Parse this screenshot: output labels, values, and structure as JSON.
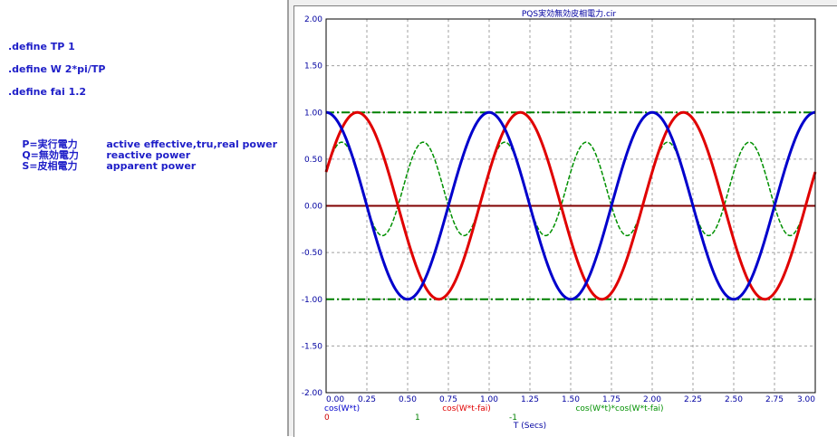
{
  "netlist": {
    "define_lines": [
      ".define TP 1",
      ".define W 2*pi/TP",
      ".define fai 1.2"
    ],
    "power_terms": [
      {
        "key": "P=実行電力",
        "desc": "active effective,tru,real power"
      },
      {
        "key": "Q=無効電力",
        "desc": "reactive power"
      },
      {
        "key": "S=皮相電力",
        "desc": "apparent power"
      }
    ]
  },
  "chart_data": {
    "type": "line",
    "title": "PQS実効無効皮相電力.cir",
    "xlabel": "T (Secs)",
    "ylabel": "",
    "xlim": [
      0,
      3
    ],
    "ylim": [
      -2,
      2
    ],
    "x_ticks": [
      "0.00",
      "0.25",
      "0.50",
      "0.75",
      "1.00",
      "1.25",
      "1.50",
      "1.75",
      "2.00",
      "2.25",
      "2.50",
      "2.75",
      "3.00"
    ],
    "y_ticks": [
      "2.00",
      "1.50",
      "1.00",
      "0.50",
      "0.00",
      "-0.50",
      "-1.00",
      "-1.50",
      "-2.00"
    ],
    "grid": true,
    "parameters": {
      "TP": 1,
      "fai": 1.2
    },
    "series": [
      {
        "name": "cos(W*t)",
        "color": "#0000cc",
        "style": "solid",
        "function": "cos(W*t)"
      },
      {
        "name": "cos(W*t-fai)",
        "color": "#e00000",
        "style": "solid",
        "function": "cos(W*t-fai)"
      },
      {
        "name": "cos(W*t)*cos(W*t-fai)",
        "color": "#009000",
        "style": "dashed",
        "function": "cos(W*t)*cos(W*t-fai)"
      }
    ],
    "reference_lines": [
      {
        "y": 1,
        "color": "#008000",
        "style": "dashdot"
      },
      {
        "y": -1,
        "color": "#008000",
        "style": "dashdot"
      },
      {
        "y": 0,
        "color": "#800000",
        "style": "solid"
      }
    ],
    "legend_values": [
      {
        "text": "0",
        "color": "#cc0000"
      },
      {
        "text": "1",
        "color": "#008000"
      },
      {
        "text": "-1",
        "color": "#008000"
      }
    ],
    "colors": {
      "axis": "#0000a0",
      "grid": "#a0a0a0",
      "frame": "#000000"
    }
  }
}
